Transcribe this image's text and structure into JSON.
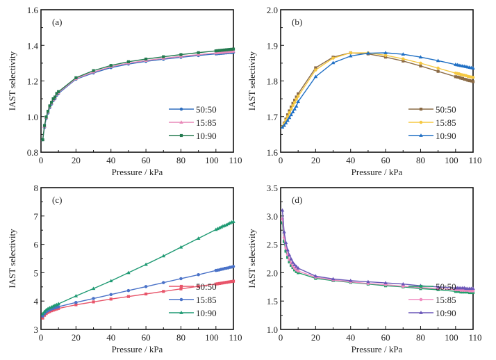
{
  "chart_data": [
    {
      "type": "line",
      "panel_label": "(a)",
      "xlabel": "Pressure / kPa",
      "ylabel": "IAST selectivity",
      "xlim": [
        0,
        110
      ],
      "ylim": [
        0.8,
        1.6
      ],
      "xticks": [
        0,
        20,
        40,
        60,
        80,
        100,
        110
      ],
      "yticks": [
        0.8,
        1.0,
        1.2,
        1.4,
        1.6
      ],
      "ytick_decimals": 1,
      "legend_position": "lower-right",
      "x": [
        1,
        2,
        3,
        4,
        5,
        6,
        7,
        8,
        9,
        10,
        20,
        30,
        40,
        50,
        60,
        70,
        80,
        90,
        100,
        101,
        102,
        103,
        104,
        105,
        106,
        107,
        108,
        109,
        110
      ],
      "series": [
        {
          "name": "50:50",
          "color": "#2f6fbf",
          "marker": "circle",
          "values": [
            0.87,
            0.94,
            0.99,
            1.02,
            1.05,
            1.07,
            1.09,
            1.1,
            1.12,
            1.13,
            1.21,
            1.245,
            1.275,
            1.295,
            1.31,
            1.322,
            1.333,
            1.343,
            1.352,
            1.353,
            1.354,
            1.355,
            1.356,
            1.357,
            1.358,
            1.359,
            1.36,
            1.36,
            1.361
          ]
        },
        {
          "name": "15:85",
          "color": "#e889b8",
          "marker": "triangle",
          "values": [
            0.87,
            0.945,
            0.995,
            1.025,
            1.055,
            1.075,
            1.095,
            1.105,
            1.125,
            1.135,
            1.213,
            1.25,
            1.28,
            1.3,
            1.315,
            1.327,
            1.338,
            1.348,
            1.357,
            1.358,
            1.359,
            1.36,
            1.361,
            1.362,
            1.363,
            1.364,
            1.365,
            1.366,
            1.367
          ]
        },
        {
          "name": "10:90",
          "color": "#237a4f",
          "marker": "square",
          "values": [
            0.87,
            0.95,
            0.998,
            1.03,
            1.06,
            1.08,
            1.1,
            1.11,
            1.13,
            1.14,
            1.218,
            1.258,
            1.287,
            1.308,
            1.323,
            1.336,
            1.348,
            1.359,
            1.369,
            1.37,
            1.371,
            1.372,
            1.373,
            1.374,
            1.375,
            1.376,
            1.377,
            1.378,
            1.379
          ]
        }
      ]
    },
    {
      "type": "line",
      "panel_label": "(b)",
      "xlabel": "Pressure / kPa",
      "ylabel": "IAST selectivity",
      "xlim": [
        0,
        110
      ],
      "ylim": [
        1.6,
        2.0
      ],
      "xticks": [
        0,
        20,
        40,
        60,
        80,
        100,
        110
      ],
      "yticks": [
        1.6,
        1.7,
        1.8,
        1.9,
        2.0
      ],
      "ytick_decimals": 1,
      "legend_position": "lower-right",
      "x": [
        1,
        2,
        3,
        4,
        5,
        6,
        7,
        8,
        9,
        10,
        20,
        30,
        40,
        50,
        60,
        70,
        80,
        90,
        100,
        101,
        102,
        103,
        104,
        105,
        106,
        107,
        108,
        109,
        110
      ],
      "series": [
        {
          "name": "50:50",
          "color": "#8a6a45",
          "marker": "square",
          "values": [
            1.672,
            1.682,
            1.693,
            1.705,
            1.716,
            1.727,
            1.737,
            1.746,
            1.755,
            1.764,
            1.837,
            1.867,
            1.879,
            1.876,
            1.867,
            1.856,
            1.842,
            1.827,
            1.812,
            1.811,
            1.81,
            1.808,
            1.807,
            1.805,
            1.804,
            1.802,
            1.801,
            1.8,
            1.798
          ]
        },
        {
          "name": "15:85",
          "color": "#f5c842",
          "marker": "circle",
          "values": [
            1.671,
            1.68,
            1.69,
            1.7,
            1.711,
            1.721,
            1.731,
            1.74,
            1.749,
            1.757,
            1.831,
            1.864,
            1.879,
            1.879,
            1.872,
            1.862,
            1.85,
            1.836,
            1.822,
            1.821,
            1.82,
            1.818,
            1.817,
            1.816,
            1.815,
            1.813,
            1.812,
            1.811,
            1.81
          ]
        },
        {
          "name": "10:90",
          "color": "#1f6fc4",
          "marker": "triangle",
          "values": [
            1.67,
            1.675,
            1.682,
            1.689,
            1.697,
            1.705,
            1.713,
            1.721,
            1.729,
            1.742,
            1.812,
            1.851,
            1.87,
            1.878,
            1.879,
            1.875,
            1.867,
            1.857,
            1.846,
            1.845,
            1.844,
            1.843,
            1.842,
            1.841,
            1.84,
            1.839,
            1.838,
            1.837,
            1.836
          ]
        }
      ]
    },
    {
      "type": "line",
      "panel_label": "(c)",
      "xlabel": "Pressure / kPa",
      "ylabel": "IAST selectivity",
      "xlim": [
        0,
        110
      ],
      "ylim": [
        3,
        8
      ],
      "xticks": [
        0,
        20,
        40,
        60,
        80,
        100,
        110
      ],
      "yticks": [
        3,
        4,
        5,
        6,
        7,
        8
      ],
      "ytick_decimals": 0,
      "legend_position": "lower-right",
      "x": [
        1,
        2,
        3,
        4,
        5,
        6,
        7,
        8,
        9,
        10,
        20,
        30,
        40,
        50,
        60,
        70,
        80,
        90,
        100,
        101,
        102,
        103,
        104,
        105,
        106,
        107,
        108,
        109,
        110
      ],
      "series": [
        {
          "name": "50:50",
          "color": "#e8556a",
          "marker": "square",
          "values": [
            3.4,
            3.5,
            3.56,
            3.6,
            3.63,
            3.66,
            3.68,
            3.7,
            3.72,
            3.74,
            3.87,
            3.97,
            4.07,
            4.16,
            4.25,
            4.34,
            4.43,
            4.52,
            4.6,
            4.61,
            4.62,
            4.63,
            4.64,
            4.65,
            4.66,
            4.67,
            4.68,
            4.69,
            4.7
          ]
        },
        {
          "name": "15:85",
          "color": "#4a72c8",
          "marker": "circle",
          "values": [
            3.47,
            3.56,
            3.62,
            3.66,
            3.69,
            3.72,
            3.74,
            3.76,
            3.78,
            3.8,
            3.95,
            4.09,
            4.23,
            4.37,
            4.51,
            4.65,
            4.79,
            4.93,
            5.08,
            5.09,
            5.1,
            5.12,
            5.13,
            5.15,
            5.16,
            5.17,
            5.19,
            5.2,
            5.22
          ]
        },
        {
          "name": "10:90",
          "color": "#1f9a73",
          "marker": "triangle",
          "values": [
            3.55,
            3.63,
            3.69,
            3.73,
            3.76,
            3.79,
            3.82,
            3.85,
            3.87,
            3.9,
            4.18,
            4.44,
            4.71,
            5.0,
            5.29,
            5.59,
            5.9,
            6.21,
            6.52,
            6.55,
            6.58,
            6.61,
            6.64,
            6.66,
            6.69,
            6.72,
            6.75,
            6.78,
            6.8
          ]
        }
      ]
    },
    {
      "type": "line",
      "panel_label": "(d)",
      "xlabel": "Pressure / kPa",
      "ylabel": "IAST selectivity",
      "xlim": [
        0,
        110
      ],
      "ylim": [
        1.0,
        3.5
      ],
      "xticks": [
        0,
        20,
        40,
        60,
        80,
        100,
        110
      ],
      "yticks": [
        1.0,
        1.5,
        2.0,
        2.5,
        3.0,
        3.5
      ],
      "ytick_decimals": 1,
      "legend_position": "lower-right",
      "x": [
        1,
        2,
        3,
        4,
        5,
        6,
        7,
        8,
        9,
        10,
        20,
        30,
        40,
        50,
        60,
        70,
        80,
        90,
        100,
        101,
        102,
        103,
        104,
        105,
        106,
        107,
        108,
        109,
        110
      ],
      "series": [
        {
          "name": "50:50",
          "color": "#22a06b",
          "marker": "square",
          "values": [
            2.88,
            2.55,
            2.38,
            2.27,
            2.19,
            2.13,
            2.09,
            2.05,
            2.02,
            2.0,
            1.9,
            1.86,
            1.83,
            1.8,
            1.77,
            1.75,
            1.72,
            1.7,
            1.67,
            1.67,
            1.67,
            1.66,
            1.66,
            1.66,
            1.66,
            1.66,
            1.65,
            1.65,
            1.65
          ]
        },
        {
          "name": "15:85",
          "color": "#f08cc0",
          "marker": "circle",
          "values": [
            2.95,
            2.62,
            2.44,
            2.32,
            2.23,
            2.17,
            2.12,
            2.08,
            2.05,
            2.03,
            1.92,
            1.87,
            1.84,
            1.81,
            1.79,
            1.76,
            1.74,
            1.72,
            1.7,
            1.7,
            1.7,
            1.69,
            1.69,
            1.69,
            1.69,
            1.69,
            1.68,
            1.68,
            1.68
          ]
        },
        {
          "name": "10:90",
          "color": "#6a56b8",
          "marker": "triangle",
          "values": [
            3.1,
            2.72,
            2.53,
            2.4,
            2.31,
            2.24,
            2.18,
            2.14,
            2.11,
            2.08,
            1.94,
            1.89,
            1.86,
            1.84,
            1.82,
            1.8,
            1.77,
            1.75,
            1.73,
            1.73,
            1.73,
            1.73,
            1.73,
            1.73,
            1.72,
            1.72,
            1.72,
            1.72,
            1.72
          ]
        }
      ]
    }
  ]
}
